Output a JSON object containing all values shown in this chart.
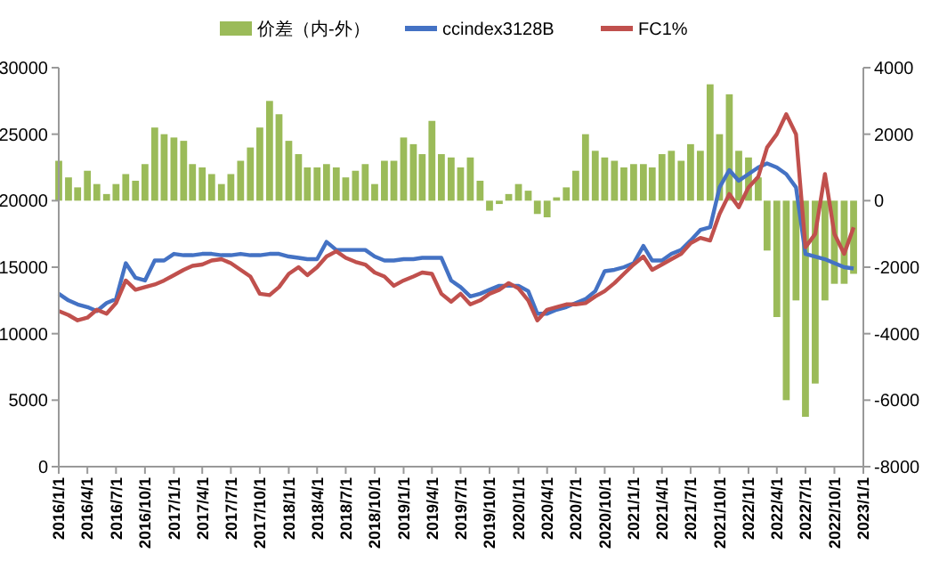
{
  "chart_data": {
    "type": "bar",
    "legend": "top",
    "grid": false,
    "x": [
      "2016-01",
      "2016-02",
      "2016-03",
      "2016-04",
      "2016-05",
      "2016-06",
      "2016-07",
      "2016-08",
      "2016-09",
      "2016-10",
      "2016-11",
      "2016-12",
      "2017-01",
      "2017-02",
      "2017-03",
      "2017-04",
      "2017-05",
      "2017-06",
      "2017-07",
      "2017-08",
      "2017-09",
      "2017-10",
      "2017-11",
      "2017-12",
      "2018-01",
      "2018-02",
      "2018-03",
      "2018-04",
      "2018-05",
      "2018-06",
      "2018-07",
      "2018-08",
      "2018-09",
      "2018-10",
      "2018-11",
      "2018-12",
      "2019-01",
      "2019-02",
      "2019-03",
      "2019-04",
      "2019-05",
      "2019-06",
      "2019-07",
      "2019-08",
      "2019-09",
      "2019-10",
      "2019-11",
      "2019-12",
      "2020-01",
      "2020-02",
      "2020-03",
      "2020-04",
      "2020-05",
      "2020-06",
      "2020-07",
      "2020-08",
      "2020-09",
      "2020-10",
      "2020-11",
      "2020-12",
      "2021-01",
      "2021-02",
      "2021-03",
      "2021-04",
      "2021-05",
      "2021-06",
      "2021-07",
      "2021-08",
      "2021-09",
      "2021-10",
      "2021-11",
      "2021-12",
      "2022-01",
      "2022-02",
      "2022-03",
      "2022-04",
      "2022-05",
      "2022-06",
      "2022-07",
      "2022-08",
      "2022-09",
      "2022-10",
      "2022-11",
      "2022-12"
    ],
    "xlim": [
      "2016-01-01",
      "2023-01-01"
    ],
    "xticks": [
      {
        "value": "2016-01-01",
        "label": "2016/1/1"
      },
      {
        "value": "2016-04-01",
        "label": "2016/4/1"
      },
      {
        "value": "2016-07-01",
        "label": "2016/7/1"
      },
      {
        "value": "2016-10-01",
        "label": "2016/10/1"
      },
      {
        "value": "2017-01-01",
        "label": "2017/1/1"
      },
      {
        "value": "2017-04-01",
        "label": "2017/4/1"
      },
      {
        "value": "2017-07-01",
        "label": "2017/7/1"
      },
      {
        "value": "2017-10-01",
        "label": "2017/10/1"
      },
      {
        "value": "2018-01-01",
        "label": "2018/1/1"
      },
      {
        "value": "2018-04-01",
        "label": "2018/4/1"
      },
      {
        "value": "2018-07-01",
        "label": "2018/7/1"
      },
      {
        "value": "2018-10-01",
        "label": "2018/10/1"
      },
      {
        "value": "2019-01-01",
        "label": "2019/1/1"
      },
      {
        "value": "2019-04-01",
        "label": "2019/4/1"
      },
      {
        "value": "2019-07-01",
        "label": "2019/7/1"
      },
      {
        "value": "2019-10-01",
        "label": "2019/10/1"
      },
      {
        "value": "2020-01-01",
        "label": "2020/1/1"
      },
      {
        "value": "2020-04-01",
        "label": "2020/4/1"
      },
      {
        "value": "2020-07-01",
        "label": "2020/7/1"
      },
      {
        "value": "2020-10-01",
        "label": "2020/10/1"
      },
      {
        "value": "2021-01-01",
        "label": "2021/1/1"
      },
      {
        "value": "2021-04-01",
        "label": "2021/4/1"
      },
      {
        "value": "2021-07-01",
        "label": "2021/7/1"
      },
      {
        "value": "2021-10-01",
        "label": "2021/10/1"
      },
      {
        "value": "2022-01-01",
        "label": "2022/1/1"
      },
      {
        "value": "2022-04-01",
        "label": "2022/4/1"
      },
      {
        "value": "2022-07-01",
        "label": "2022/7/1"
      },
      {
        "value": "2022-10-01",
        "label": "2022/10/1"
      },
      {
        "value": "2023-01-01",
        "label": "2023/1/1"
      }
    ],
    "ylim": [
      0,
      30000
    ],
    "yticks": [
      0,
      5000,
      10000,
      15000,
      20000,
      25000,
      30000
    ],
    "y2lim": [
      -8000,
      4000
    ],
    "y2ticks": [
      -8000,
      -6000,
      -4000,
      -2000,
      0,
      2000,
      4000
    ],
    "series": [
      {
        "name": "价差（内-外）",
        "axis": "y2",
        "color": "#9bbb59",
        "values": [
          1200,
          700,
          400,
          900,
          500,
          200,
          500,
          800,
          600,
          1100,
          2200,
          2000,
          1900,
          1800,
          1100,
          1000,
          800,
          500,
          800,
          1200,
          1600,
          2200,
          3000,
          2600,
          1800,
          1400,
          1000,
          1000,
          1100,
          1000,
          700,
          900,
          1100,
          500,
          1200,
          1200,
          1900,
          1700,
          1400,
          2400,
          1400,
          1300,
          1000,
          1300,
          600,
          -300,
          -100,
          200,
          500,
          300,
          -400,
          -500,
          100,
          400,
          900,
          2000,
          1500,
          1300,
          1200,
          1000,
          1100,
          1100,
          1000,
          1400,
          1500,
          1200,
          1700,
          1500,
          3500,
          2000,
          3200,
          1500,
          1300,
          700,
          -1500,
          -3500,
          -6000,
          -3000,
          -6500,
          -5500,
          -3000,
          -2500,
          -2500,
          -2200
        ]
      },
      {
        "name": "ccindex3128B",
        "type": "line",
        "color": "#4472c4",
        "values": [
          13000,
          12500,
          12200,
          12000,
          11700,
          12300,
          12600,
          15300,
          14200,
          14000,
          15500,
          15500,
          16000,
          15900,
          15900,
          16000,
          16000,
          15900,
          15900,
          16000,
          15900,
          15900,
          16000,
          16000,
          15800,
          15700,
          15600,
          15600,
          16900,
          16300,
          16300,
          16300,
          16300,
          15800,
          15500,
          15500,
          15600,
          15600,
          15700,
          15700,
          15700,
          14000,
          13500,
          12800,
          13000,
          13300,
          13600,
          13600,
          13600,
          13200,
          11500,
          11500,
          11800,
          12000,
          12300,
          12600,
          13200,
          14700,
          14800,
          15000,
          15300,
          16600,
          15500,
          15500,
          16000,
          16300,
          17000,
          17800,
          18000,
          21000,
          22300,
          21500,
          22000,
          22500,
          22800,
          22500,
          22000,
          21000,
          16000,
          15800,
          15600,
          15300,
          15000,
          14900
        ]
      },
      {
        "name": "FC1%",
        "type": "line",
        "color": "#c0504d",
        "values": [
          11700,
          11400,
          11000,
          11200,
          11800,
          11500,
          12300,
          14000,
          13300,
          13500,
          13700,
          14000,
          14400,
          14800,
          15100,
          15200,
          15500,
          15600,
          15300,
          14800,
          14300,
          13000,
          12900,
          13500,
          14500,
          15000,
          14400,
          15000,
          15800,
          16200,
          15700,
          15400,
          15200,
          14600,
          14300,
          13600,
          14000,
          14300,
          14600,
          14500,
          13000,
          12400,
          13000,
          12200,
          12500,
          13000,
          13300,
          13800,
          13400,
          12500,
          11000,
          11800,
          12000,
          12200,
          12200,
          12300,
          12800,
          13200,
          13800,
          14500,
          15200,
          15800,
          14800,
          15200,
          15600,
          16000,
          16800,
          17200,
          17000,
          19000,
          20500,
          19500,
          21000,
          21800,
          24000,
          25000,
          26500,
          25000,
          16500,
          17500,
          22000,
          17500,
          16000,
          18000
        ]
      }
    ]
  }
}
